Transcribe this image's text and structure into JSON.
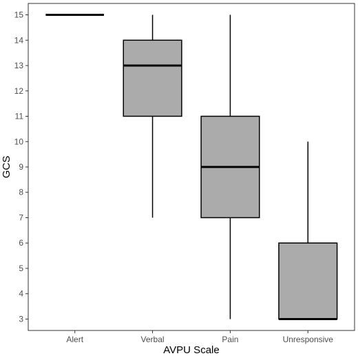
{
  "chart_data": {
    "type": "boxplot",
    "title": "",
    "xlabel": "AVPU Scale",
    "ylabel": "GCS",
    "ylim": [
      2.55,
      15.45
    ],
    "yticks": [
      3,
      4,
      5,
      6,
      7,
      8,
      9,
      10,
      11,
      12,
      13,
      14,
      15
    ],
    "categories": [
      "Alert",
      "Verbal",
      "Pain",
      "Unresponsive"
    ],
    "boxes": [
      {
        "category": "Alert",
        "min": 15,
        "q1": 15,
        "median": 15,
        "q3": 15,
        "max": 15
      },
      {
        "category": "Verbal",
        "min": 7,
        "q1": 11,
        "median": 13,
        "q3": 14,
        "max": 15
      },
      {
        "category": "Pain",
        "min": 3,
        "q1": 7,
        "median": 9,
        "q3": 11,
        "max": 15
      },
      {
        "category": "Unresponsive",
        "min": 3,
        "q1": 3,
        "median": 3,
        "q3": 6,
        "max": 10
      }
    ],
    "grid": false,
    "box_fill": "#ababab",
    "line_color": "#000000"
  }
}
